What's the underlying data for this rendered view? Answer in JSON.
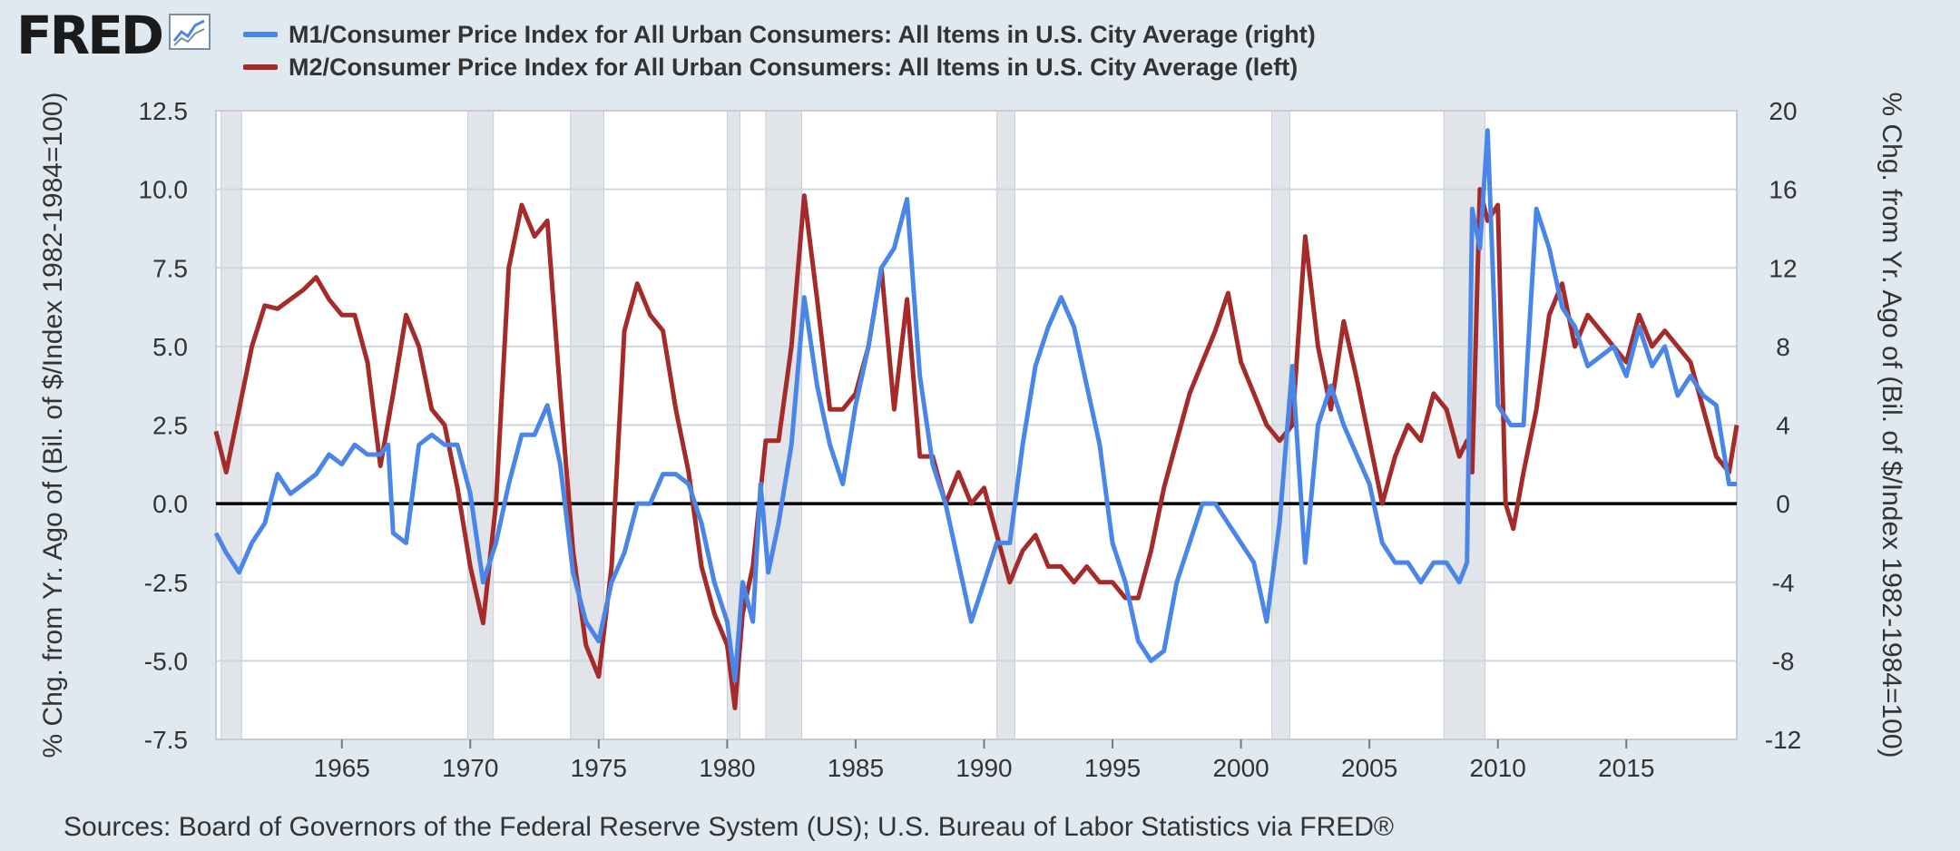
{
  "brand": {
    "name": "FRED"
  },
  "source": "Sources: Board of Governors of the Federal Reserve System (US); U.S. Bureau of Labor Statistics via FRED®",
  "colors": {
    "m1": "#4a86e8",
    "m2": "#a52a2a",
    "background": "#e1e9f0",
    "plot": "#ffffff",
    "recession": "#e1e4e9",
    "grid": "#cfd6de"
  },
  "icons": {
    "brand_graph": "line-graph-icon"
  },
  "chart_data": {
    "type": "line",
    "title": "",
    "legend_position": "top-left",
    "grid": true,
    "xlim": [
      1960.1,
      2019.3
    ],
    "x_ticks": [
      1965,
      1970,
      1975,
      1980,
      1985,
      1990,
      1995,
      2000,
      2005,
      2010,
      2015
    ],
    "x_tick_labels": [
      "1965",
      "1970",
      "1975",
      "1980",
      "1985",
      "1990",
      "1995",
      "2000",
      "2005",
      "2010",
      "2015"
    ],
    "y_left": {
      "label": "% Chg. from Yr. Ago of (Bil. of $/Index 1982-1984=100)",
      "ylim": [
        -7.5,
        12.5
      ],
      "ticks": [
        -7.5,
        -5.0,
        -2.5,
        0.0,
        2.5,
        5.0,
        7.5,
        10.0,
        12.5
      ],
      "tick_labels": [
        "-7.5",
        "-5.0",
        "-2.5",
        "0.0",
        "2.5",
        "5.0",
        "7.5",
        "10.0",
        "12.5"
      ]
    },
    "y_right": {
      "label": "% Chg. from Yr. Ago of (Bil. of $/Index 1982-1984=100)",
      "ylim": [
        -12,
        20
      ],
      "ticks": [
        -12,
        -8,
        -4,
        0,
        4,
        8,
        12,
        16,
        20
      ],
      "tick_labels": [
        "-12",
        "-8",
        "-4",
        "0",
        "4",
        "8",
        "12",
        "16",
        "20"
      ]
    },
    "recessions": [
      [
        1960.3,
        1961.1
      ],
      [
        1969.9,
        1970.9
      ],
      [
        1973.9,
        1975.2
      ],
      [
        1980.0,
        1980.5
      ],
      [
        1981.5,
        1982.9
      ],
      [
        1990.5,
        1991.2
      ],
      [
        2001.2,
        2001.9
      ],
      [
        2007.9,
        2009.5
      ]
    ],
    "series": [
      {
        "name": "M1/Consumer Price Index for All Urban Consumers: All Items in U.S. City Average (right)",
        "axis": "right",
        "x": [
          1960.1,
          1960.5,
          1961.0,
          1961.5,
          1962.0,
          1962.5,
          1963.0,
          1963.5,
          1964.0,
          1964.5,
          1965.0,
          1965.5,
          1966.0,
          1966.5,
          1966.8,
          1967.0,
          1967.5,
          1968.0,
          1968.5,
          1969.0,
          1969.5,
          1970.0,
          1970.5,
          1971.0,
          1971.5,
          1972.0,
          1972.5,
          1973.0,
          1973.5,
          1974.0,
          1974.5,
          1975.0,
          1975.5,
          1976.0,
          1976.5,
          1977.0,
          1977.5,
          1978.0,
          1978.5,
          1979.0,
          1979.5,
          1980.0,
          1980.3,
          1980.6,
          1981.0,
          1981.3,
          1981.6,
          1982.0,
          1982.5,
          1983.0,
          1983.5,
          1984.0,
          1984.5,
          1985.0,
          1985.5,
          1986.0,
          1986.5,
          1987.0,
          1987.5,
          1988.0,
          1988.5,
          1989.0,
          1989.5,
          1990.0,
          1990.5,
          1991.0,
          1991.5,
          1992.0,
          1992.5,
          1993.0,
          1993.5,
          1994.0,
          1994.5,
          1995.0,
          1995.5,
          1996.0,
          1996.5,
          1997.0,
          1997.5,
          1998.0,
          1998.5,
          1999.0,
          1999.5,
          2000.0,
          2000.5,
          2001.0,
          2001.5,
          2002.0,
          2002.5,
          2003.0,
          2003.5,
          2004.0,
          2004.5,
          2005.0,
          2005.5,
          2006.0,
          2006.5,
          2007.0,
          2007.5,
          2008.0,
          2008.5,
          2008.8,
          2009.0,
          2009.3,
          2009.6,
          2010.0,
          2010.5,
          2011.0,
          2011.5,
          2012.0,
          2012.5,
          2013.0,
          2013.5,
          2014.0,
          2014.5,
          2015.0,
          2015.5,
          2016.0,
          2016.5,
          2017.0,
          2017.5,
          2018.0,
          2018.5,
          2019.0,
          2019.3
        ],
        "values": [
          -1.5,
          -2.5,
          -3.5,
          -2.0,
          -1.0,
          1.5,
          0.5,
          1.0,
          1.5,
          2.5,
          2.0,
          3.0,
          2.5,
          2.5,
          3.0,
          -1.5,
          -2.0,
          3.0,
          3.5,
          3.0,
          3.0,
          0.5,
          -4.0,
          -2.0,
          1.0,
          3.5,
          3.5,
          5.0,
          2.0,
          -3.5,
          -6.0,
          -7.0,
          -4.0,
          -2.5,
          0.0,
          0.0,
          1.5,
          1.5,
          1.0,
          -1.0,
          -4.0,
          -6.0,
          -9.0,
          -4.0,
          -6.0,
          1.0,
          -3.5,
          -1.0,
          3.0,
          10.5,
          6.0,
          3.0,
          1.0,
          5.0,
          8.0,
          12.0,
          13.0,
          15.5,
          6.5,
          2.0,
          0.0,
          -3.0,
          -6.0,
          -4.0,
          -2.0,
          -2.0,
          3.0,
          7.0,
          9.0,
          10.5,
          9.0,
          6.0,
          3.0,
          -2.0,
          -4.0,
          -7.0,
          -8.0,
          -7.5,
          -4.0,
          -2.0,
          0.0,
          0.0,
          -1.0,
          -2.0,
          -3.0,
          -6.0,
          -1.0,
          7.0,
          -3.0,
          4.0,
          6.0,
          4.0,
          2.5,
          1.0,
          -2.0,
          -3.0,
          -3.0,
          -4.0,
          -3.0,
          -3.0,
          -4.0,
          -3.0,
          15.0,
          13.0,
          19.0,
          5.0,
          4.0,
          4.0,
          15.0,
          13.0,
          10.0,
          9.0,
          7.0,
          7.5,
          8.0,
          6.5,
          9.0,
          7.0,
          8.0,
          5.5,
          6.5,
          5.5,
          5.0,
          1.0,
          1.0
        ]
      },
      {
        "name": "M2/Consumer Price Index for All Urban Consumers: All Items in U.S. City Average (left)",
        "axis": "left",
        "x": [
          1960.1,
          1960.5,
          1961.0,
          1961.5,
          1962.0,
          1962.5,
          1963.0,
          1963.5,
          1964.0,
          1964.5,
          1965.0,
          1965.5,
          1966.0,
          1966.5,
          1967.0,
          1967.5,
          1968.0,
          1968.5,
          1969.0,
          1969.5,
          1970.0,
          1970.5,
          1971.0,
          1971.5,
          1972.0,
          1972.5,
          1973.0,
          1973.5,
          1974.0,
          1974.5,
          1975.0,
          1975.5,
          1976.0,
          1976.5,
          1977.0,
          1977.5,
          1978.0,
          1978.5,
          1979.0,
          1979.5,
          1980.0,
          1980.3,
          1980.6,
          1981.0,
          1981.5,
          1982.0,
          1982.5,
          1983.0,
          1983.5,
          1984.0,
          1984.5,
          1985.0,
          1985.5,
          1986.0,
          1986.5,
          1987.0,
          1987.5,
          1988.0,
          1988.5,
          1989.0,
          1989.5,
          1990.0,
          1990.5,
          1991.0,
          1991.5,
          1992.0,
          1992.5,
          1993.0,
          1993.5,
          1994.0,
          1994.5,
          1995.0,
          1995.5,
          1996.0,
          1996.5,
          1997.0,
          1997.5,
          1998.0,
          1998.5,
          1999.0,
          1999.5,
          2000.0,
          2000.5,
          2001.0,
          2001.5,
          2002.0,
          2002.5,
          2003.0,
          2003.5,
          2004.0,
          2004.5,
          2005.0,
          2005.5,
          2006.0,
          2006.5,
          2007.0,
          2007.5,
          2008.0,
          2008.5,
          2008.8,
          2009.0,
          2009.3,
          2009.6,
          2010.0,
          2010.3,
          2010.6,
          2011.0,
          2011.5,
          2012.0,
          2012.5,
          2013.0,
          2013.5,
          2014.0,
          2014.5,
          2015.0,
          2015.5,
          2016.0,
          2016.5,
          2017.0,
          2017.5,
          2018.0,
          2018.5,
          2019.0,
          2019.3
        ],
        "values": [
          2.3,
          1.0,
          3.0,
          5.0,
          6.3,
          6.2,
          6.5,
          6.8,
          7.2,
          6.5,
          6.0,
          6.0,
          4.5,
          1.2,
          3.5,
          6.0,
          5.0,
          3.0,
          2.5,
          0.5,
          -2.0,
          -3.8,
          0.0,
          7.5,
          9.5,
          8.5,
          9.0,
          3.5,
          -1.5,
          -4.5,
          -5.5,
          -2.0,
          5.5,
          7.0,
          6.0,
          5.5,
          3.0,
          1.0,
          -2.0,
          -3.5,
          -4.5,
          -6.5,
          -3.5,
          -2.0,
          2.0,
          2.0,
          5.0,
          9.8,
          6.5,
          3.0,
          3.0,
          3.5,
          5.0,
          7.5,
          3.0,
          6.5,
          1.5,
          1.5,
          0.0,
          1.0,
          0.0,
          0.5,
          -1.0,
          -2.5,
          -1.5,
          -1.0,
          -2.0,
          -2.0,
          -2.5,
          -2.0,
          -2.5,
          -2.5,
          -3.0,
          -3.0,
          -1.5,
          0.5,
          2.0,
          3.5,
          4.5,
          5.5,
          6.7,
          4.5,
          3.5,
          2.5,
          2.0,
          2.5,
          8.5,
          5.0,
          3.0,
          5.8,
          4.0,
          2.0,
          0.0,
          1.5,
          2.5,
          2.0,
          3.5,
          3.0,
          1.5,
          2.0,
          1.0,
          10.0,
          9.0,
          9.5,
          0.0,
          -0.8,
          1.0,
          3.0,
          6.0,
          7.0,
          5.0,
          6.0,
          5.5,
          5.0,
          4.5,
          6.0,
          5.0,
          5.5,
          5.0,
          4.5,
          3.0,
          1.5,
          1.0,
          2.5
        ]
      }
    ]
  }
}
